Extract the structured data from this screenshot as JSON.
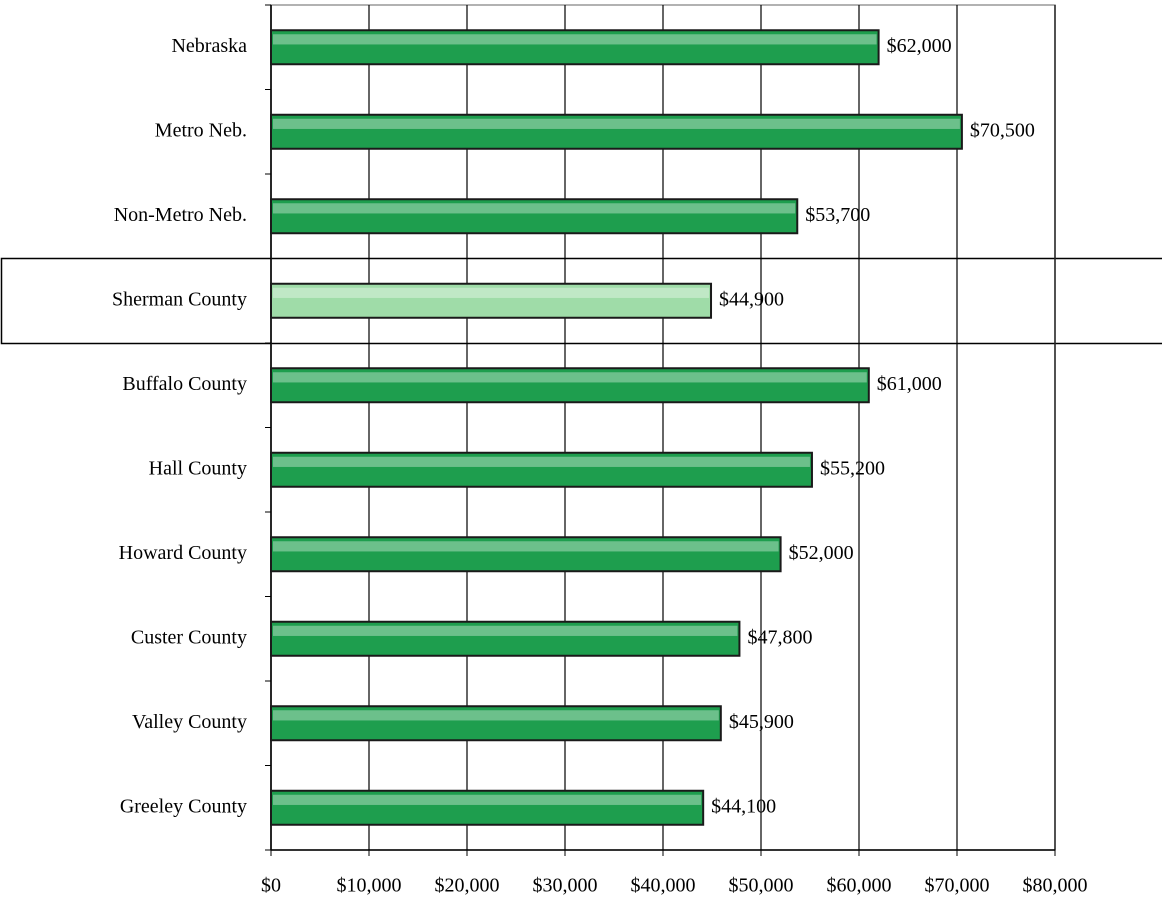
{
  "chart_data": {
    "type": "bar",
    "orientation": "horizontal",
    "categories": [
      "Nebraska",
      "Metro Neb.",
      "Non-Metro Neb.",
      "Sherman County",
      "Buffalo County",
      "Hall County",
      "Howard County",
      "Custer County",
      "Valley County",
      "Greeley County"
    ],
    "values": [
      62000,
      70500,
      53700,
      44900,
      61000,
      55200,
      52000,
      47800,
      45900,
      44100
    ],
    "value_labels": [
      "$62,000",
      "$70,500",
      "$53,700",
      "$44,900",
      "$61,000",
      "$55,200",
      "$52,000",
      "$47,800",
      "$45,900",
      "$44,100"
    ],
    "colors": [
      "#1e9e4e",
      "#1e9e4e",
      "#1e9e4e",
      "#9fdca8",
      "#1e9e4e",
      "#1e9e4e",
      "#1e9e4e",
      "#1e9e4e",
      "#1e9e4e",
      "#1e9e4e"
    ],
    "xlim": [
      0,
      80000
    ],
    "xticks": [
      {
        "value": 0,
        "label": "$0"
      },
      {
        "value": 10000,
        "label": "$10,000"
      },
      {
        "value": 20000,
        "label": "$20,000"
      },
      {
        "value": 30000,
        "label": "$30,000"
      },
      {
        "value": 40000,
        "label": "$40,000"
      },
      {
        "value": 50000,
        "label": "$50,000"
      },
      {
        "value": 60000,
        "label": "$60,000"
      },
      {
        "value": 70000,
        "label": "$70,000"
      },
      {
        "value": 80000,
        "label": "$80,000"
      }
    ],
    "grid": true
  }
}
